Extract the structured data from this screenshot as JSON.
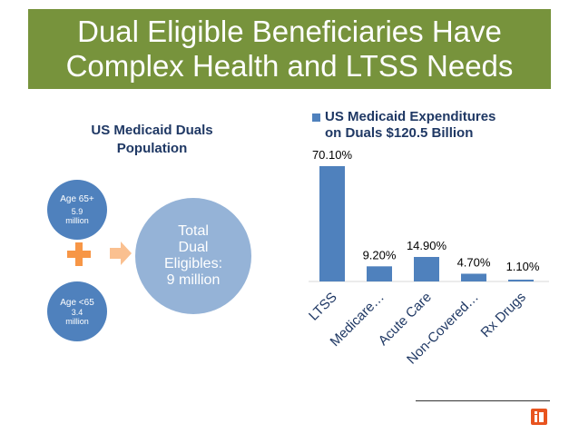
{
  "slide": {
    "title_lines": [
      "Dual Eligible Beneficiaries Have",
      "Complex Health and LTSS Needs"
    ],
    "population": {
      "title_lines": [
        "US Medicaid Duals",
        "Population"
      ],
      "age65plus": {
        "label_lines": [
          "Age 65+"
        ],
        "value_lines": [
          "5.9",
          "million"
        ]
      },
      "age65minus": {
        "label_lines": [
          "Age <65"
        ],
        "value_lines": [
          "3.4",
          "million"
        ]
      },
      "total_lines": [
        "Total",
        "Dual",
        "Eligibles:",
        "9 million"
      ]
    },
    "colors": {
      "banner": "#77933c",
      "bar": "#4f81bd",
      "accent": "#f79646"
    },
    "icons": [
      "plus-icon",
      "arrow-right-icon",
      "logo-icon"
    ]
  },
  "chart_data": {
    "type": "bar",
    "legend_lines": [
      "US Medicaid Expenditures",
      "on Duals $120.5 Billion"
    ],
    "categories": [
      "LTSS",
      "Medicare…",
      "Acute Care",
      "Non-Covered…",
      "Rx Drugs"
    ],
    "values": [
      70.1,
      9.2,
      14.9,
      4.7,
      1.1
    ],
    "data_labels": [
      "70.10%",
      "9.20%",
      "14.90%",
      "4.70%",
      "1.10%"
    ],
    "ylim": [
      0,
      70.1
    ],
    "grid": false,
    "legend": "top"
  }
}
